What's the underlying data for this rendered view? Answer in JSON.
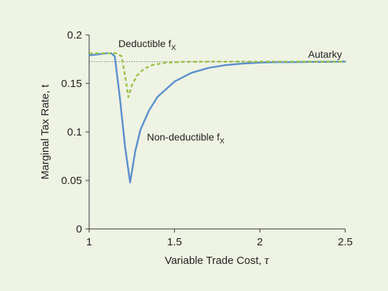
{
  "chart_data": {
    "type": "line",
    "xlabel_main": "Variable Trade Cost, ",
    "xlabel_symbol": "τ",
    "ylabel": "Marginal Tax Rate, t",
    "xlim": [
      1,
      2.5
    ],
    "ylim": [
      0,
      0.2
    ],
    "x_ticks": [
      "1",
      "1.5",
      "2",
      "2.5"
    ],
    "y_ticks": [
      "0",
      "0.05",
      "0.1",
      "0.15",
      "0.2"
    ],
    "grid": false,
    "annotations": {
      "deductible_main": "Deductible f",
      "deductible_sub": "X",
      "nondeductible_main": "Non-deductible f",
      "nondeductible_sub": "X",
      "autarky": "Autarky"
    },
    "series": [
      {
        "name": "Non-deductible fX",
        "color": "#5b8fcc",
        "style": "solid",
        "x": [
          1.0,
          1.05,
          1.1,
          1.13,
          1.15,
          1.18,
          1.21,
          1.24,
          1.27,
          1.3,
          1.35,
          1.4,
          1.5,
          1.6,
          1.7,
          1.8,
          1.9,
          2.0,
          2.1,
          2.2,
          2.3,
          2.4,
          2.5
        ],
        "y": [
          0.179,
          0.18,
          0.181,
          0.181,
          0.178,
          0.135,
          0.085,
          0.048,
          0.08,
          0.102,
          0.122,
          0.136,
          0.152,
          0.161,
          0.166,
          0.169,
          0.1705,
          0.1715,
          0.172,
          0.172,
          0.1722,
          0.1723,
          0.1725
        ]
      },
      {
        "name": "Deductible fX",
        "color": "#9bc14a",
        "style": "dashed",
        "x": [
          1.0,
          1.1,
          1.16,
          1.19,
          1.21,
          1.23,
          1.25,
          1.28,
          1.32,
          1.37,
          1.45,
          1.55,
          1.7,
          1.9,
          2.1,
          2.3,
          2.5
        ],
        "y": [
          0.181,
          0.181,
          0.181,
          0.178,
          0.158,
          0.136,
          0.148,
          0.158,
          0.165,
          0.169,
          0.1715,
          0.1722,
          0.1725,
          0.1725,
          0.1725,
          0.1725,
          0.1725
        ]
      }
    ],
    "reference_lines": [
      {
        "name": "Autarky",
        "y": 0.1725,
        "style": "dotted",
        "color": "#555555"
      }
    ]
  }
}
